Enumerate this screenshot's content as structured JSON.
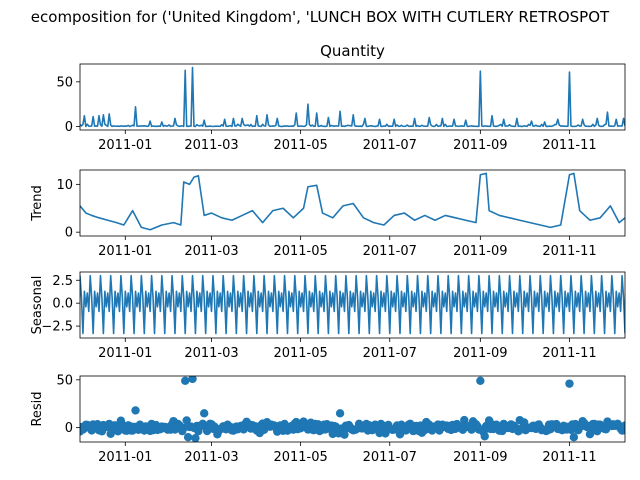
{
  "figure_title": "ecomposition for ('United Kingdom', 'LUNCH BOX WITH CUTLERY RETROSPOT",
  "colors": {
    "series": "#1f77b4",
    "axis": "#000000",
    "background": "#ffffff"
  },
  "chart_data": [
    {
      "type": "line",
      "title": "Quantity",
      "ylabel": "",
      "xlim": [
        "2010-12-01",
        "2011-12-09"
      ],
      "ylim": [
        -4,
        70
      ],
      "yticks": [
        0,
        50
      ],
      "xticks": [
        "2011-01",
        "2011-03",
        "2011-05",
        "2011-07",
        "2011-09",
        "2011-11"
      ],
      "base_level": 1,
      "peaks": [
        [
          "2010-12-04",
          12
        ],
        [
          "2010-12-10",
          11
        ],
        [
          "2010-12-14",
          12
        ],
        [
          "2010-12-17",
          13
        ],
        [
          "2010-12-21",
          14
        ],
        [
          "2011-01-08",
          22
        ],
        [
          "2011-01-18",
          6
        ],
        [
          "2011-01-26",
          5
        ],
        [
          "2011-02-04",
          9
        ],
        [
          "2011-02-11",
          63
        ],
        [
          "2011-02-16",
          66
        ],
        [
          "2011-02-24",
          7
        ],
        [
          "2011-03-10",
          8
        ],
        [
          "2011-03-16",
          9
        ],
        [
          "2011-03-22",
          9
        ],
        [
          "2011-04-01",
          12
        ],
        [
          "2011-04-08",
          13
        ],
        [
          "2011-04-15",
          9
        ],
        [
          "2011-04-28",
          15
        ],
        [
          "2011-05-06",
          25
        ],
        [
          "2011-05-12",
          15
        ],
        [
          "2011-05-20",
          10
        ],
        [
          "2011-05-28",
          17
        ],
        [
          "2011-06-06",
          13
        ],
        [
          "2011-06-14",
          9
        ],
        [
          "2011-06-24",
          8
        ],
        [
          "2011-07-04",
          8
        ],
        [
          "2011-07-18",
          9
        ],
        [
          "2011-07-28",
          10
        ],
        [
          "2011-08-06",
          9
        ],
        [
          "2011-08-14",
          8
        ],
        [
          "2011-08-22",
          7
        ],
        [
          "2011-09-01",
          62
        ],
        [
          "2011-09-09",
          12
        ],
        [
          "2011-09-17",
          8
        ],
        [
          "2011-09-26",
          9
        ],
        [
          "2011-10-06",
          6
        ],
        [
          "2011-10-15",
          5
        ],
        [
          "2011-10-24",
          8
        ],
        [
          "2011-11-01",
          61
        ],
        [
          "2011-11-10",
          8
        ],
        [
          "2011-11-20",
          9
        ],
        [
          "2011-11-27",
          16
        ],
        [
          "2011-12-03",
          8
        ],
        [
          "2011-12-08",
          9
        ]
      ]
    },
    {
      "type": "line",
      "title": "",
      "ylabel": "Trend",
      "xlim": [
        "2010-12-01",
        "2011-12-09"
      ],
      "ylim": [
        -0.8,
        13
      ],
      "yticks": [
        0,
        10
      ],
      "xticks": [
        "2011-01",
        "2011-03",
        "2011-05",
        "2011-07",
        "2011-09",
        "2011-11"
      ],
      "x": [
        "2010-12-01",
        "2010-12-05",
        "2010-12-09",
        "2010-12-14",
        "2010-12-20",
        "2010-12-26",
        "2010-12-31",
        "2011-01-06",
        "2011-01-12",
        "2011-01-18",
        "2011-01-26",
        "2011-02-03",
        "2011-02-08",
        "2011-02-10",
        "2011-02-14",
        "2011-02-17",
        "2011-02-20",
        "2011-02-24",
        "2011-03-01",
        "2011-03-08",
        "2011-03-15",
        "2011-03-22",
        "2011-03-29",
        "2011-04-05",
        "2011-04-12",
        "2011-04-19",
        "2011-04-26",
        "2011-05-03",
        "2011-05-06",
        "2011-05-12",
        "2011-05-16",
        "2011-05-23",
        "2011-05-30",
        "2011-06-06",
        "2011-06-13",
        "2011-06-20",
        "2011-06-27",
        "2011-07-04",
        "2011-07-11",
        "2011-07-18",
        "2011-07-25",
        "2011-08-01",
        "2011-08-08",
        "2011-08-15",
        "2011-08-22",
        "2011-08-29",
        "2011-09-01",
        "2011-09-05",
        "2011-09-07",
        "2011-09-14",
        "2011-09-21",
        "2011-09-28",
        "2011-10-05",
        "2011-10-12",
        "2011-10-19",
        "2011-10-26",
        "2011-11-01",
        "2011-11-04",
        "2011-11-08",
        "2011-11-15",
        "2011-11-22",
        "2011-11-29",
        "2011-12-05",
        "2011-12-09"
      ],
      "values": [
        5.5,
        4,
        3.5,
        3,
        2.5,
        2,
        1.5,
        4.5,
        1,
        0.5,
        1.5,
        2,
        1.5,
        10.5,
        10,
        11.5,
        11.8,
        3.5,
        4,
        3,
        2.5,
        3.5,
        4.5,
        2,
        4.5,
        5,
        3,
        5,
        9.5,
        9.8,
        4,
        3,
        5.5,
        6,
        3,
        2,
        1.5,
        3.5,
        4,
        2.5,
        3.5,
        2.5,
        3.5,
        3,
        2.5,
        2,
        12,
        12.3,
        4.5,
        3.5,
        3,
        2.5,
        2,
        1.5,
        1,
        1.5,
        12,
        12.3,
        4.5,
        2.5,
        3,
        5.5,
        2,
        3
      ]
    },
    {
      "type": "line",
      "title": "",
      "ylabel": "Seasonal",
      "xlim": [
        "2010-12-01",
        "2011-12-09"
      ],
      "ylim": [
        -3.8,
        3.4
      ],
      "yticks": [
        2.5,
        0.0,
        -2.5
      ],
      "ytick_labels": [
        "2.5",
        "0.0",
        "−2.5"
      ],
      "xticks": [
        "2011-01",
        "2011-03",
        "2011-05",
        "2011-07",
        "2011-09",
        "2011-11"
      ],
      "period_days": 7,
      "weekly_pattern": [
        3.0,
        0.6,
        -3.3,
        1.3,
        -0.4,
        1.1,
        -0.9
      ]
    },
    {
      "type": "scatter",
      "title": "",
      "ylabel": "Resid",
      "xlim": [
        "2010-12-01",
        "2011-12-09"
      ],
      "ylim": [
        -15,
        54
      ],
      "yticks": [
        0,
        50
      ],
      "xticks": [
        "2011-01",
        "2011-03",
        "2011-05",
        "2011-07",
        "2011-09",
        "2011-11"
      ],
      "outliers": [
        [
          "2011-02-11",
          49
        ],
        [
          "2011-02-16",
          51
        ],
        [
          "2011-09-01",
          49
        ],
        [
          "2011-11-01",
          46
        ],
        [
          "2011-01-08",
          18
        ],
        [
          "2011-02-24",
          15
        ],
        [
          "2011-05-28",
          15
        ],
        [
          "2011-02-13",
          -10
        ],
        [
          "2011-02-18",
          -11
        ],
        [
          "2011-09-04",
          -9
        ],
        [
          "2011-11-04",
          -10
        ]
      ],
      "noise_amplitude": 5,
      "zero_line": true
    }
  ]
}
